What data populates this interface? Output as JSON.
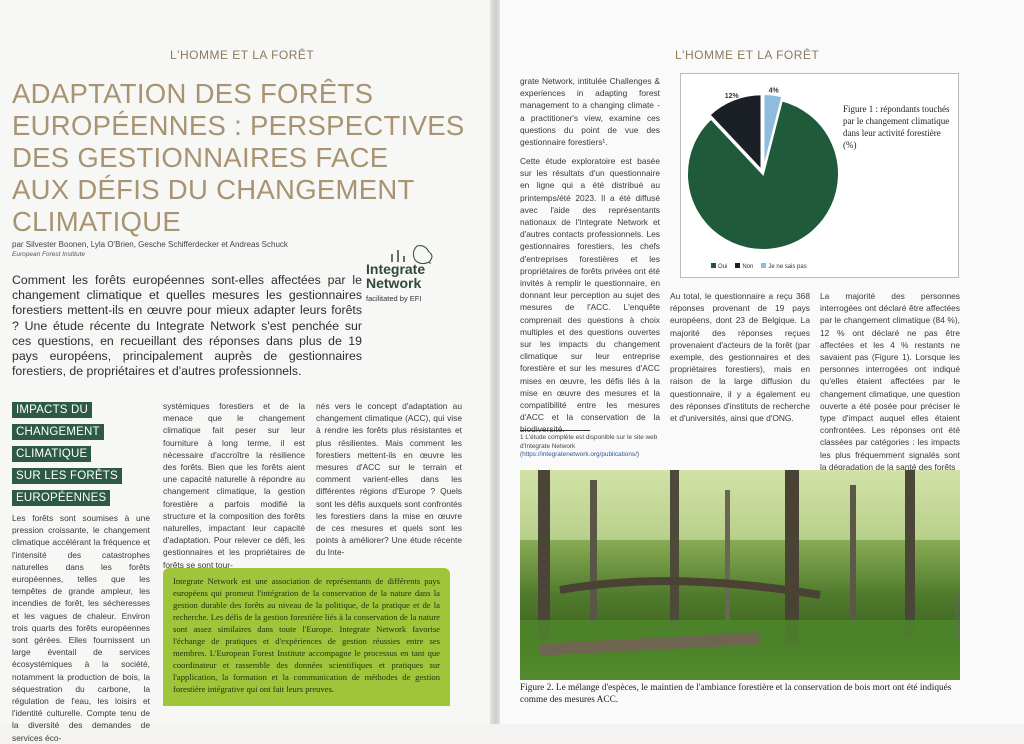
{
  "left_page": {
    "running_head": "L'HOMME ET LA FORÊT",
    "title_lines": [
      "ADAPTATION DES FORÊTS",
      "EUROPÉENNES : PERSPECTIVES",
      "DES GESTIONNAIRES FACE",
      "AUX DÉFIS DU CHANGEMENT",
      "CLIMATIQUE"
    ],
    "authors": "par Silvester Boonen, Lyla O'Brien, Gesche Schifferdecker et Andreas Schuck",
    "institution": "European Forest Institute",
    "intro": "Comment les forêts européennes sont-elles affectées par le changement climatique et quelles mesures les gestionnaires forestiers mettent-ils en œuvre pour mieux adapter leurs forêts ? Une étude récente du Integrate Network s'est penchée sur ces questions, en recueillant des réponses dans plus de 19 pays européens, principalement auprès de gestionnaires forestiers, de propriétaires et d'autres professionnels.",
    "logo": {
      "line1": "Integrate",
      "line2": "Network",
      "tagline": "facilitated by EFI"
    },
    "section_heading": [
      "IMPACTS DU",
      "CHANGEMENT",
      "CLIMATIQUE",
      "SUR LES FORÊTS",
      "EUROPÉENNES"
    ],
    "col1": "Les forêts sont soumises à une pression croissante, le changement climatique accélérant la fréquence et l'intensité des catastrophes naturelles dans les forêts européennes, telles que les tempêtes de grande ampleur, les incendies de forêt, les sécheresses et les vagues de chaleur. Environ trois quarts des forêts européennes sont gérées. Elles fournissent un large éventail de services écosystémiques à la société, notamment la production de bois, la séquestration du carbone, la régulation de l'eau, les loisirs et l'identité culturelle. Compte tenu de la diversité des demandes de services éco-",
    "col2": "systémiques forestiers et de la menace que le changement climatique fait peser sur leur fourniture à long terme, il est nécessaire d'accroître la résilience des forêts. Bien que les forêts aient une capacité naturelle à répondre au changement climatique, la gestion forestière a parfois modifié la structure et la composition des forêts naturelles, impactant leur capacité d'adaptation. Pour relever ce défi, les gestionnaires et les propriétaires de forêts se sont tour-",
    "col3": "nés vers le concept d'adaptation au changement climatique (ACC), qui vise à rendre les forêts plus résistantes et plus résilientes. Mais comment les forestiers mettent-ils en œuvre les mesures d'ACC sur le terrain et comment varient-elles dans les différentes régions d'Europe ? Quels sont les défis auxquels sont confrontés les forestiers dans la mise en œuvre de ces mesures et quels sont les points à améliorer? Une étude récente du Inte-",
    "box": "Integrate Network est une association de représentants de différents pays européens qui promeut l'intégration de la conservation de la nature dans la gestion durable des forêts au niveau de la politique, de la pratique et de la recherche. Les défis de la gestion forestière liés à la conservation de la nature sont assez similaires dans toute l'Europe. Integrate Network favorise l'échange de pratiques et d'expériences de gestion réussies entre ses membres. L'European Forest Institute accompagne le processus en tant que coordinateur et rassemble des données scientifiques et pratiques sur l'application, la formation et la communication de méthodes de gestion forestière intégrative qui ont fait leurs preuves."
  },
  "right_page": {
    "running_head": "L'HOMME ET LA FORÊT",
    "col1_p1": "grate Network, intitulée Challenges & experiences in adapting forest management to a changing climate - a practitioner's view, examine ces questions du point de vue des gestionnaire forestiers¹.",
    "col1_p2": "Cette étude exploratoire est basée sur les résultats d'un questionnaire en ligne qui a été distribué au printemps/été 2023. Il a été diffusé avec l'aide des représentants nationaux de l'Integrate Network et d'autres contacts professionnels. Les gestionnaires forestiers, les chefs d'entreprises forestières et les propriétaires de forêts privées ont été invités à remplir le questionnaire, en donnant leur perception au sujet des mesures de l'ACC. L'enquête comprenait des questions à choix multiples et des questions ouvertes sur les impacts du changement climatique sur leur entreprise forestière et sur les mesures d'ACC mises en œuvre, les défis liés à la mise en œuvre des mesures et la compatibilité entre les mesures d'ACC et la conservation de la biodiversité.",
    "footnote": "1 L'étude complète est disponible sur le site web d'Integrate Network (",
    "footnote_link": "https://integratenetwork.org/publications/",
    "footnote_end": ")",
    "col2": "Au total, le questionnaire a reçu 368 réponses provenant de 19 pays européens, dont 23 de Belgique. La majorité des réponses reçues provenaient d'acteurs de la forêt (par exemple, des gestionnaires et des propriétaires forestiers), mais en raison de la large diffusion du questionnaire, il y a également eu des réponses d'instituts de recherche et d'universités, ainsi que d'ONG.",
    "col3": "La majorité des personnes interrogées ont déclaré être affectées par le changement climatique (84 %), 12 % ont déclaré ne pas être affectées et les 4 % restants ne savaient pas (Figure 1). Lorsque les personnes interrogées ont indiqué qu'elles étaient affectées par le changement climatique, une question ouverte a été posée pour préciser le type d'impact auquel elles étaient confrontées. Les réponses ont été classées par catégories : les impacts les plus fréquemment signalés sont la dégradation de la santé des forêts",
    "figure1_caption": "Figure 1 : répondants touchés par le changement climatique dans leur activité forestière (%)",
    "figure2_caption": "Figure 2. Le mélange d'espèces, le maintien de l'ambiance forestière et la conservation de bois mort ont été indiqués comme des mesures ACC.",
    "photo_credit": "© Andreas Schuck"
  },
  "chart_data": {
    "type": "pie",
    "categories": [
      "Oui",
      "Non",
      "Je ne sais pas"
    ],
    "values": [
      84,
      12,
      4
    ],
    "labels": [
      "84%",
      "12%",
      "4%"
    ],
    "colors": [
      "#1f5a3a",
      "#1b2027",
      "#8fbcdc"
    ],
    "title": "Figure 1 : répondants touchés par le changement climatique dans leur activité forestière (%)",
    "legend": "bottom"
  }
}
